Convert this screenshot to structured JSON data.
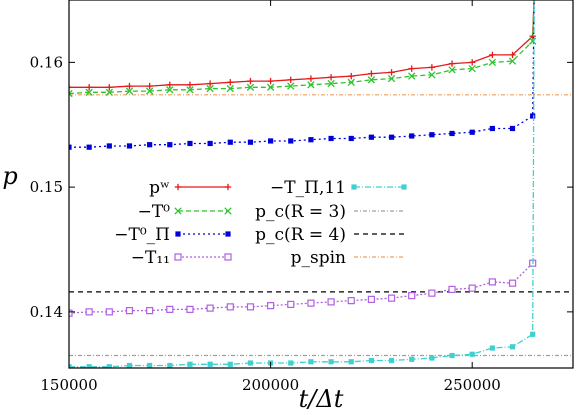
{
  "chart_data": {
    "type": "line",
    "xlabel": "t/Δt",
    "ylabel": "p",
    "xlim": [
      150000,
      275000
    ],
    "ylim": [
      0.1355,
      0.165
    ],
    "x_ticks": [
      150000,
      200000,
      250000
    ],
    "x_tick_labels": [
      "150000",
      "200000",
      "250000"
    ],
    "y_ticks": [
      0.14,
      0.15,
      0.16
    ],
    "y_tick_labels": [
      "0.14",
      "0.15",
      "0.16"
    ],
    "legend_position": "center-left",
    "grid": false,
    "x": [
      150000,
      155000,
      160000,
      165000,
      170000,
      175000,
      180000,
      185000,
      190000,
      195000,
      200000,
      205000,
      210000,
      215000,
      220000,
      225000,
      230000,
      235000,
      240000,
      245000,
      250000,
      255000,
      260000,
      265000
    ],
    "series": [
      {
        "name": "p^w",
        "legend_tex": "pʷ",
        "color": "#e41a1c",
        "dash": "",
        "marker": "plus",
        "values": [
          0.158,
          0.158,
          0.158,
          0.1581,
          0.1581,
          0.1582,
          0.1582,
          0.1583,
          0.1584,
          0.1585,
          0.1585,
          0.1586,
          0.1587,
          0.1588,
          0.1589,
          0.1591,
          0.1592,
          0.1595,
          0.1596,
          0.1599,
          0.16,
          0.1606,
          0.1606,
          0.1621
        ],
        "spike_to_top": true
      },
      {
        "name": "-T^0",
        "legend_tex": "−T⁰",
        "color": "#2fc42f",
        "dash": "5,3",
        "marker": "x",
        "values": [
          0.1575,
          0.1576,
          0.1576,
          0.1577,
          0.1577,
          0.1578,
          0.1578,
          0.1579,
          0.1579,
          0.158,
          0.158,
          0.1581,
          0.1582,
          0.1583,
          0.1584,
          0.1586,
          0.1587,
          0.1589,
          0.159,
          0.1594,
          0.1595,
          0.16,
          0.1601,
          0.1617
        ],
        "spike_to_top": true
      },
      {
        "name": "-T^0_Π",
        "legend_tex": "−T⁰_Π",
        "color": "#0000d8",
        "dash": "2,3",
        "marker": "square-filled",
        "values": [
          0.1532,
          0.1532,
          0.1533,
          0.1533,
          0.1534,
          0.1534,
          0.1535,
          0.1535,
          0.1536,
          0.1536,
          0.1537,
          0.1537,
          0.1538,
          0.1539,
          0.1539,
          0.154,
          0.154,
          0.1541,
          0.1542,
          0.1543,
          0.1544,
          0.1547,
          0.1547,
          0.1557
        ],
        "spike_to_top": true
      },
      {
        "name": "-T_11",
        "legend_tex": "−T₁₁",
        "color": "#b060e0",
        "dash": "2,2",
        "marker": "square-open",
        "values": [
          0.1399,
          0.14,
          0.14,
          0.1401,
          0.1401,
          0.1402,
          0.1402,
          0.1403,
          0.1404,
          0.1404,
          0.1405,
          0.1406,
          0.1407,
          0.1408,
          0.1409,
          0.141,
          0.1411,
          0.1413,
          0.1415,
          0.1418,
          0.1419,
          0.1424,
          0.1423,
          0.1439
        ],
        "spike_to_top": false
      },
      {
        "name": "-T_Π,11",
        "legend_tex": "−T_Π,11",
        "color": "#40d0d0",
        "dash": "6,2,1,2",
        "marker": "square-filled",
        "values": [
          0.1356,
          0.1356,
          0.1356,
          0.1357,
          0.1357,
          0.1357,
          0.1358,
          0.1358,
          0.1358,
          0.1359,
          0.1359,
          0.1359,
          0.136,
          0.136,
          0.136,
          0.1361,
          0.1361,
          0.1362,
          0.1363,
          0.1365,
          0.1366,
          0.1371,
          0.1372,
          0.1382
        ],
        "spike_to_top": true
      }
    ],
    "hlines": [
      {
        "name": "p_c(R=3)",
        "legend_tex": "p_c(R = 3)",
        "y": 0.1365,
        "color": "#a0a0a0",
        "dash": "4,2,1,2"
      },
      {
        "name": "p_c(R=4)",
        "legend_tex": "p_c(R = 4)",
        "y": 0.1416,
        "color": "#000000",
        "dash": "5,4"
      },
      {
        "name": "p_spin",
        "legend_tex": "p_spin",
        "y": 0.1574,
        "color": "#f0a060",
        "dash": "4,2,1,2"
      }
    ]
  }
}
